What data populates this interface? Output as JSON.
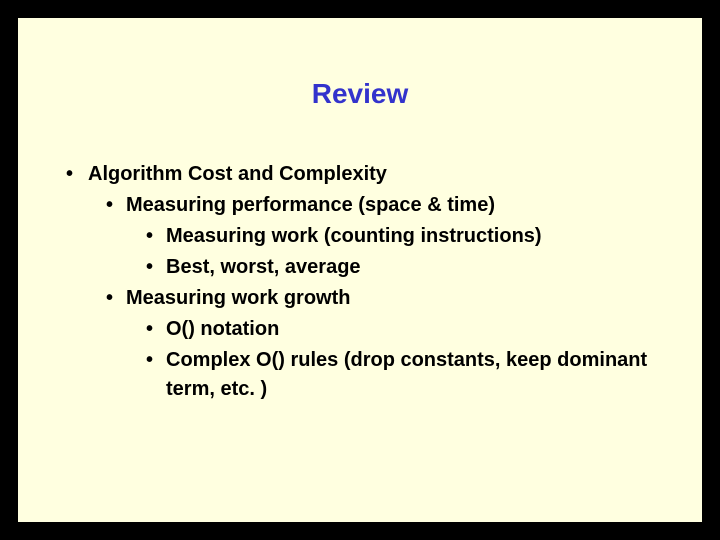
{
  "slide": {
    "title": "Review",
    "title_color": "#3333cc",
    "background_color": "#ffffe0",
    "border_color": "#000000",
    "outer_background": "#000000",
    "text_color": "#000000",
    "title_fontsize": 28,
    "body_fontsize": 20,
    "font_weight": "bold",
    "bullets": {
      "l1_0": "Algorithm Cost and Complexity",
      "l2_0": "Measuring performance (space & time)",
      "l3_0": "Measuring work (counting instructions)",
      "l3_1": "Best, worst, average",
      "l2_1": "Measuring work growth",
      "l3_2": "O() notation",
      "l3_3": "Complex O() rules (drop constants, keep dominant term, etc. )"
    }
  }
}
